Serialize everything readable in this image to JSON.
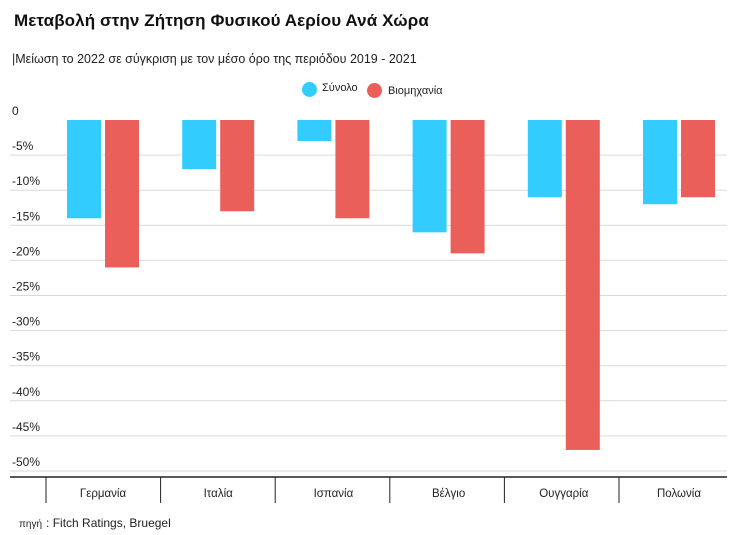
{
  "title": "Μεταβολή στην Ζήτηση Φυσικού Αερίου Ανά Χώρα",
  "subtitle": "|Μείωση το 2022 σε σύγκριση με τον μέσο όρο της περιόδου 2019 - 2021",
  "source": {
    "prefix": "πηγή",
    "text": ": Fitch Ratings, Bruegel"
  },
  "colors": {
    "series_1": "#33ccff",
    "series_2": "#eb5f5a",
    "grid": "#d9d9d9",
    "axis": "#222222"
  },
  "chart_data": {
    "type": "bar",
    "categories": [
      "Γερμανία",
      "Ιταλία",
      "Ισπανία",
      "Βέλγιο",
      "Ουγγαρία",
      "Πολωνία"
    ],
    "series": [
      {
        "name": "Σύνολο",
        "values": [
          -14,
          -7,
          -3,
          -16,
          -11,
          -12
        ]
      },
      {
        "name": "Βιομηχανία",
        "values": [
          -21,
          -13,
          -14,
          -19,
          -47,
          -11
        ]
      }
    ],
    "y_ticks": [
      "0",
      "-5%",
      "-10%",
      "-15%",
      "-20%",
      "-25%",
      "-30%",
      "-35%",
      "-40%",
      "-45%",
      "-50%"
    ],
    "ylim": [
      -50,
      0
    ],
    "legend_position": "top-center",
    "grid": true
  }
}
